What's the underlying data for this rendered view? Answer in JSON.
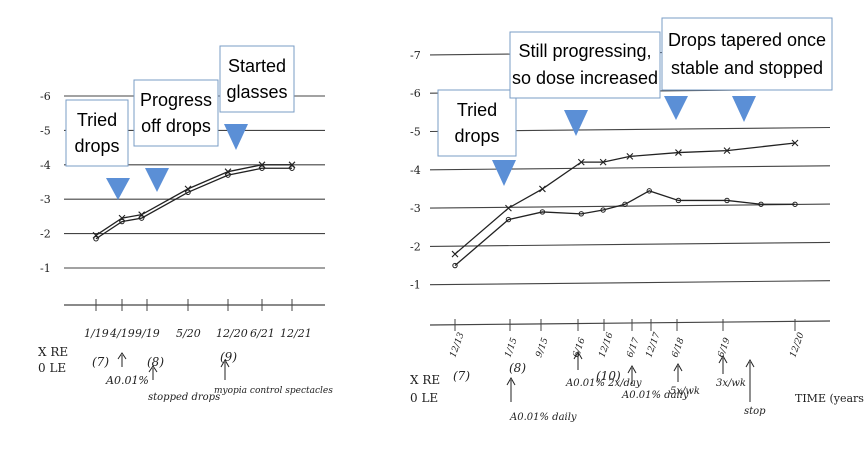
{
  "chart_data": [
    {
      "type": "line",
      "y_tick_labels": [
        "-6",
        "-5",
        "-4",
        "-3",
        "-2",
        "-1"
      ],
      "ylim": [
        -0.2,
        -6.8
      ],
      "x_axis_labels": [
        "1/19",
        "4/19",
        "9/19",
        "5/20",
        "12/20",
        "6/21",
        "12/21"
      ],
      "x_positions_years": [
        2019.0,
        2019.25,
        2019.67,
        2020.33,
        2021.0,
        2021.5,
        2022.0
      ],
      "x_subscript_notes": [
        "(7)",
        "(8)",
        "(9)"
      ],
      "legend": [
        "X RE",
        "0 LE"
      ],
      "series": [
        {
          "name": "RE",
          "marker": "x",
          "points": [
            [
              2019.0,
              -1.95
            ],
            [
              2019.25,
              -2.45
            ],
            [
              2019.58,
              -2.55
            ],
            [
              2020.33,
              -3.3
            ],
            [
              2021.0,
              -3.8
            ],
            [
              2021.5,
              -4.0
            ],
            [
              2022.0,
              -4.0
            ]
          ]
        },
        {
          "name": "LE",
          "marker": "o",
          "points": [
            [
              2019.0,
              -1.85
            ],
            [
              2019.25,
              -2.35
            ],
            [
              2019.58,
              -2.45
            ],
            [
              2020.33,
              -3.2
            ],
            [
              2021.0,
              -3.7
            ],
            [
              2021.5,
              -3.9
            ],
            [
              2022.0,
              -3.9
            ]
          ]
        }
      ],
      "annotations": {
        "handwritten": [
          "A0.01%",
          "stopped drops",
          "myopia control spectacles"
        ]
      },
      "callouts": [
        {
          "lines": [
            "Tried",
            "drops"
          ]
        },
        {
          "lines": [
            "Progress",
            "off drops"
          ]
        },
        {
          "lines": [
            "Started",
            "glasses"
          ]
        }
      ]
    },
    {
      "type": "line",
      "y_tick_labels": [
        "-7",
        "-6",
        "-5",
        "-4",
        "-3",
        "-2",
        "-1"
      ],
      "ylim": [
        0,
        -7.2
      ],
      "x_axis_labels": [
        "12/13",
        "1/15",
        "9/15",
        "6/16",
        "12/16",
        "6/17",
        "12/17",
        "6/18",
        "6/19",
        "12/20"
      ],
      "x_subscript_notes": [
        "(7)",
        "(8)",
        "(10)"
      ],
      "xlabel": "TIME (years)",
      "legend": [
        "X RE",
        "0 LE"
      ],
      "series": [
        {
          "name": "RE",
          "marker": "x",
          "points": [
            [
              2013.9,
              -1.8
            ],
            [
              2015.0,
              -3.0
            ],
            [
              2015.7,
              -3.5
            ],
            [
              2016.5,
              -4.2
            ],
            [
              2016.95,
              -4.2
            ],
            [
              2017.5,
              -4.35
            ],
            [
              2018.5,
              -4.45
            ],
            [
              2019.5,
              -4.5
            ],
            [
              2020.9,
              -4.7
            ]
          ]
        },
        {
          "name": "LE",
          "marker": "o",
          "points": [
            [
              2013.9,
              -1.5
            ],
            [
              2015.0,
              -2.7
            ],
            [
              2015.7,
              -2.9
            ],
            [
              2016.5,
              -2.85
            ],
            [
              2016.95,
              -2.95
            ],
            [
              2017.4,
              -3.1
            ],
            [
              2017.9,
              -3.45
            ],
            [
              2018.5,
              -3.2
            ],
            [
              2019.5,
              -3.2
            ],
            [
              2020.2,
              -3.1
            ],
            [
              2020.9,
              -3.1
            ]
          ]
        }
      ],
      "annotations": {
        "handwritten": [
          "A0.01% daily",
          "A0.01% 2x/day",
          "A0.01% daily",
          "5x/wk",
          "3x/wk",
          "stop"
        ]
      },
      "callouts": [
        {
          "lines": [
            "Tried",
            "drops"
          ]
        },
        {
          "lines": [
            "Still progressing,",
            "so dose increased"
          ]
        },
        {
          "lines": [
            "Drops tapered once",
            "stable and stopped"
          ]
        }
      ]
    }
  ],
  "colors": {
    "marker_triangle": "#5b8fd6",
    "ink": "#222222",
    "grid": "#444444",
    "callout_border": "#7a9cc6"
  }
}
